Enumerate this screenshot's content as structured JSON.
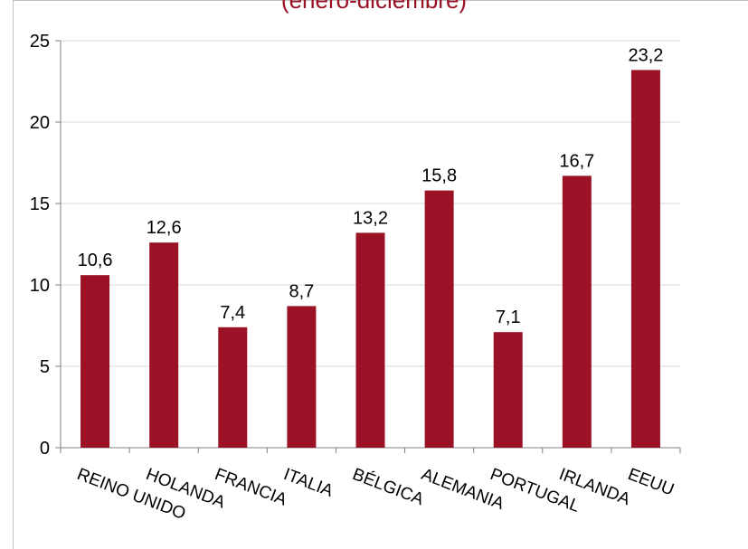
{
  "subtitle": "(enero-diciembre)",
  "chart_data": {
    "type": "bar",
    "title": "",
    "subtitle": "(enero-diciembre)",
    "xlabel": "",
    "ylabel": "",
    "categories": [
      "REINO UNIDO",
      "HOLANDA",
      "FRANCIA",
      "ITALIA",
      "BÉLGICA",
      "ALEMANIA",
      "PORTUGAL",
      "IRLANDA",
      "EEUU"
    ],
    "values": [
      10.6,
      12.6,
      7.4,
      8.7,
      13.2,
      15.8,
      7.1,
      16.7,
      23.2
    ],
    "value_labels": [
      "10,6",
      "12,6",
      "7,4",
      "8,7",
      "13,2",
      "15,8",
      "7,1",
      "16,7",
      "23,2"
    ],
    "yticks": [
      "0",
      "5",
      "10",
      "15",
      "20",
      "25"
    ],
    "ylim": [
      0,
      25
    ],
    "grid": true,
    "legend": "none",
    "bar_color": "#9b1226",
    "grid_color": "#d9d9d9"
  }
}
